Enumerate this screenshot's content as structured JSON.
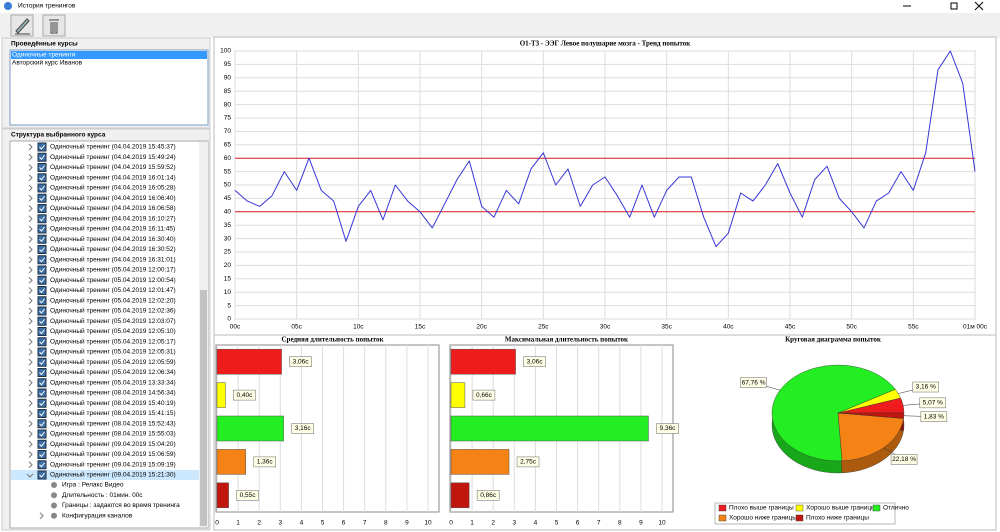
{
  "window": {
    "title": "История тренингов"
  },
  "courses": {
    "title": "Проведённые курсы",
    "items": [
      "Одиночные тренинги",
      "Авторский курс Иванов"
    ],
    "selected": 0
  },
  "structure": {
    "title": "Структура выбранного курса",
    "items": [
      "Одиночный тренинг (04.04.2019 15:45:37)",
      "Одиночный тренинг (04.04.2019 15:49:24)",
      "Одиночный тренинг (04.04.2019 15:59:52)",
      "Одиночный тренинг (04.04.2019 16:01:14)",
      "Одиночный тренинг (04.04.2019 16:05:28)",
      "Одиночный тренинг (04.04.2019 16:06:40)",
      "Одиночный тренинг (04.04.2019 16:06:58)",
      "Одиночный тренинг (04.04.2019 16:10:27)",
      "Одиночный тренинг (04.04.2019 16:11:45)",
      "Одиночный тренинг (04.04.2019 16:30:40)",
      "Одиночный тренинг (04.04.2019 16:30:52)",
      "Одиночный тренинг (04.04.2019 16:31:01)",
      "Одиночный тренинг (05.04.2019 12:00:17)",
      "Одиночный тренинг (05.04.2019 12:00:54)",
      "Одиночный тренинг (05.04.2019 12:01:47)",
      "Одиночный тренинг (05.04.2019 12:02:20)",
      "Одиночный тренинг (05.04.2019 12:02:36)",
      "Одиночный тренинг (05.04.2019 12:03:07)",
      "Одиночный тренинг (05.04.2019 12:05:10)",
      "Одиночный тренинг (05.04.2019 12:05:17)",
      "Одиночный тренинг (05.04.2019 12:05:31)",
      "Одиночный тренинг (05.04.2019 12:05:59)",
      "Одиночный тренинг (05.04.2019 12:06:34)",
      "Одиночный тренинг (05.04.2019 13:33:34)",
      "Одиночный тренинг (08.04.2019 14:56:34)",
      "Одиночный тренинг (08.04.2019 15:40:19)",
      "Одиночный тренинг (08.04.2019 15:41:15)",
      "Одиночный тренинг (08.04.2019 15:52:43)",
      "Одиночный тренинг (08.04.2019 15:55:03)",
      "Одиночный тренинг (09.04.2019 15:04:20)",
      "Одиночный тренинг (09.04.2019 15:06:59)",
      "Одиночный тренинг (09.04.2019 15:09:19)",
      "Одиночный тренинг (09.04.2019 15:21:30)"
    ],
    "details": [
      "Игра : Релакс Видео",
      "Длительность : 01мин. 00с",
      "Границы : задаются во время тренинга",
      "Конфигурация каналов"
    ]
  },
  "chart_data": [
    {
      "type": "line",
      "title": "O1-T3 - ЭЭГ Левое полушарие мозга - Тренд попыток",
      "x": [
        0,
        1,
        2,
        3,
        4,
        5,
        6,
        7,
        8,
        9,
        10,
        11,
        12,
        13,
        14,
        15,
        16,
        17,
        18,
        19,
        20,
        21,
        22,
        23,
        24,
        25,
        26,
        27,
        28,
        29,
        30,
        31,
        32,
        33,
        34,
        35,
        36,
        37,
        38,
        39,
        40,
        41,
        42,
        43,
        44,
        45,
        46,
        47,
        48,
        49,
        50,
        51,
        52,
        53,
        54,
        55,
        56,
        57,
        58,
        59,
        60
      ],
      "values": [
        48,
        44,
        42,
        46,
        55,
        48,
        60,
        48,
        44,
        29,
        42,
        48,
        37,
        50,
        44,
        40,
        34,
        43,
        52,
        59,
        42,
        38,
        48,
        43,
        56,
        62,
        50,
        56,
        42,
        50,
        53,
        46,
        38,
        50,
        38,
        48,
        53,
        53,
        38,
        27,
        32,
        47,
        44,
        50,
        58,
        47,
        38,
        52,
        57,
        45,
        40,
        34,
        44,
        47,
        55,
        48,
        62,
        93,
        100,
        88,
        55
      ],
      "color": "#3636d8",
      "xlim": [
        0,
        60
      ],
      "xticks": [
        {
          "value": 0,
          "label": "00с"
        },
        {
          "value": 5,
          "label": "05с"
        },
        {
          "value": 10,
          "label": "10с"
        },
        {
          "value": 15,
          "label": "15с"
        },
        {
          "value": 20,
          "label": "20с"
        },
        {
          "value": 25,
          "label": "25с"
        },
        {
          "value": 30,
          "label": "30с"
        },
        {
          "value": 35,
          "label": "35с"
        },
        {
          "value": 40,
          "label": "40с"
        },
        {
          "value": 45,
          "label": "45с"
        },
        {
          "value": 50,
          "label": "50с"
        },
        {
          "value": 55,
          "label": "55с"
        },
        {
          "value": 60,
          "label": "01м 00с"
        }
      ],
      "ylim": [
        0,
        100
      ],
      "yticks": [
        0,
        5,
        10,
        15,
        20,
        25,
        30,
        35,
        40,
        45,
        50,
        55,
        60,
        65,
        70,
        75,
        80,
        85,
        90,
        95,
        100
      ],
      "grid": true,
      "thresholds": {
        "values": [
          40,
          60
        ],
        "color": "#e02020"
      }
    },
    {
      "type": "barh",
      "title": "Средняя длительность попыток",
      "categories": [
        null,
        null,
        null,
        null,
        null
      ],
      "colors": [
        "#ee1c1c",
        "#ffff00",
        "#22ee22",
        "#f58214",
        "#c0160e"
      ],
      "values": [
        3.06,
        0.4,
        3.16,
        1.36,
        0.55
      ],
      "value_labels": [
        "3,06с",
        "0,40с",
        "3,16с",
        "1,36с",
        "0,55с"
      ],
      "xlim": [
        0,
        10
      ],
      "xticks": [
        0,
        1,
        2,
        3,
        4,
        5,
        6,
        7,
        8,
        9,
        10
      ],
      "grid": true
    },
    {
      "type": "barh",
      "title": "Максимальная длительность попыток",
      "categories": [
        null,
        null,
        null,
        null,
        null
      ],
      "colors": [
        "#ee1c1c",
        "#ffff00",
        "#22ee22",
        "#f58214",
        "#c0160e"
      ],
      "values": [
        3.06,
        0.66,
        9.36,
        2.75,
        0.86
      ],
      "value_labels": [
        "3,06с",
        "0,66с",
        "9,36с",
        "2,75с",
        "0,86с"
      ],
      "xlim": [
        0,
        10
      ],
      "xticks": [
        0,
        1,
        2,
        3,
        4,
        5,
        6,
        7,
        8,
        9,
        10
      ],
      "grid": true
    },
    {
      "type": "pie",
      "title": "Круговая диаграмма попыток",
      "categories": [
        "Плохо выше границы",
        "Хорошо выше границы",
        "Отлично",
        "Хорошо ниже границы",
        "Плохо ниже границы"
      ],
      "colors": [
        "#ee1c1c",
        "#ffff00",
        "#22ee22",
        "#f58214",
        "#c0160e"
      ],
      "values": [
        5.07,
        3.16,
        67.76,
        22.18,
        1.83
      ],
      "value_labels": [
        "5,07 %",
        "3,16 %",
        "67,76 %",
        "22,18 %",
        "1,83 %"
      ]
    }
  ]
}
